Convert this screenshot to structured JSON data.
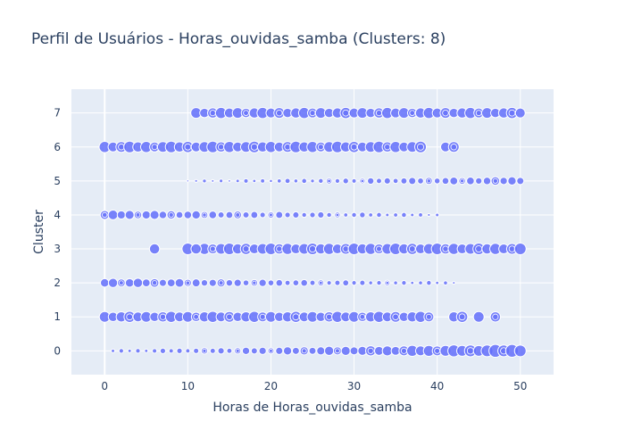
{
  "chart_data": {
    "type": "scatter",
    "title": "Perfil de Usuários - Horas_ouvidas_samba (Clusters: 8)",
    "xlabel": "Horas de Horas_ouvidas_samba",
    "ylabel": "Cluster",
    "xlim": [
      -4,
      54
    ],
    "ylim": [
      -0.7,
      7.7
    ],
    "xticks": [
      "0",
      "10",
      "20",
      "30",
      "40",
      "50"
    ],
    "xtick_values": [
      0,
      10,
      20,
      30,
      40,
      50
    ],
    "yticks": [
      "0",
      "1",
      "2",
      "3",
      "4",
      "5",
      "6",
      "7"
    ],
    "ytick_values": [
      0,
      1,
      2,
      3,
      4,
      5,
      6,
      7
    ],
    "grid": true,
    "marker_color": "#636efa",
    "plot_bg": "#e5ecf6",
    "clusters": [
      {
        "cluster": 0,
        "x_start": 1,
        "x_end": 50,
        "size_min": 2,
        "size_max": 7,
        "size_trend": "increasing"
      },
      {
        "cluster": 1,
        "x_start": 0,
        "x_end": 39,
        "size_min": 5,
        "size_max": 6.5,
        "size_trend": "flat",
        "extra_x": [
          42,
          43,
          45,
          47
        ]
      },
      {
        "cluster": 2,
        "x_start": 0,
        "x_end": 42,
        "size_min": 2,
        "size_max": 5,
        "size_trend": "decreasing"
      },
      {
        "cluster": 3,
        "x_start": 12,
        "x_end": 50,
        "size_min": 5.5,
        "size_max": 6.5,
        "size_trend": "flat",
        "extra_x": [
          6,
          10,
          11
        ]
      },
      {
        "cluster": 4,
        "x_start": 0,
        "x_end": 40,
        "size_min": 2,
        "size_max": 5,
        "size_trend": "decreasing"
      },
      {
        "cluster": 5,
        "x_start": 10,
        "x_end": 50,
        "size_min": 1.5,
        "size_max": 4.5,
        "size_trend": "increasing"
      },
      {
        "cluster": 6,
        "x_start": 0,
        "x_end": 38,
        "size_min": 5.5,
        "size_max": 6.5,
        "size_trend": "flat",
        "extra_x": [
          41,
          42
        ]
      },
      {
        "cluster": 7,
        "x_start": 11,
        "x_end": 50,
        "size_min": 5,
        "size_max": 6.5,
        "size_trend": "flat"
      }
    ]
  }
}
